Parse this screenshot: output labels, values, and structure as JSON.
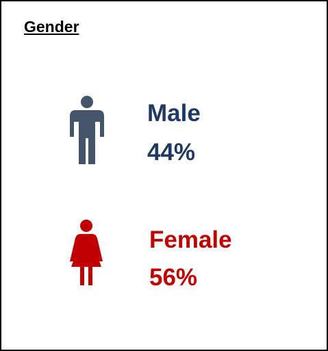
{
  "title": "Gender",
  "items": [
    {
      "label": "Male",
      "value": "44%"
    },
    {
      "label": "Female",
      "value": "56%"
    }
  ]
}
